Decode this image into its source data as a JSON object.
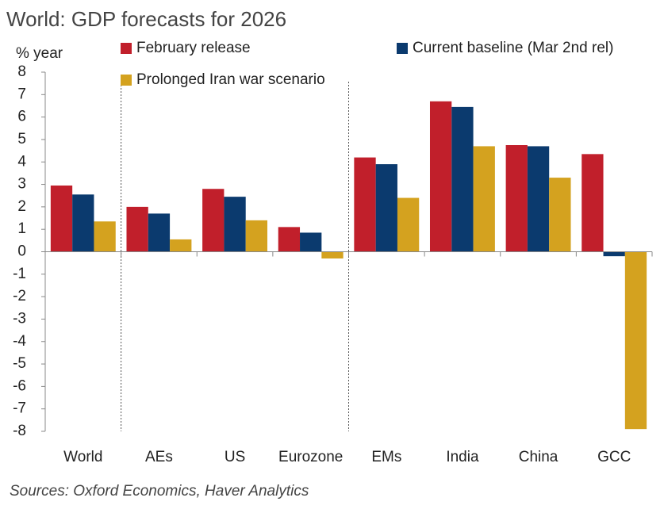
{
  "chart_data": {
    "type": "bar",
    "title": "World: GDP forecasts for 2026",
    "y_label": "% year",
    "source": "Sources: Oxford Economics, Haver Analytics",
    "categories": [
      "World",
      "AEs",
      "US",
      "Eurozone",
      "EMs",
      "India",
      "China",
      "GCC"
    ],
    "series": [
      {
        "name": "February release",
        "color": "#c11f2b",
        "values": [
          2.95,
          2.0,
          2.8,
          1.1,
          4.2,
          6.7,
          4.75,
          4.35
        ]
      },
      {
        "name": "Current baseline (Mar 2nd rel)",
        "color": "#0b3a6e",
        "values": [
          2.55,
          1.7,
          2.45,
          0.85,
          3.9,
          6.45,
          4.7,
          -0.2
        ]
      },
      {
        "name": "Prolonged Iran war scenario",
        "color": "#d4a21f",
        "values": [
          1.35,
          0.55,
          1.4,
          -0.3,
          2.4,
          4.7,
          3.3,
          -7.9
        ]
      }
    ],
    "ylim": [
      -8,
      8
    ],
    "yticks": [
      -8,
      -7,
      -6,
      -5,
      -4,
      -3,
      -2,
      -1,
      0,
      1,
      2,
      3,
      4,
      5,
      6,
      7,
      8
    ]
  }
}
